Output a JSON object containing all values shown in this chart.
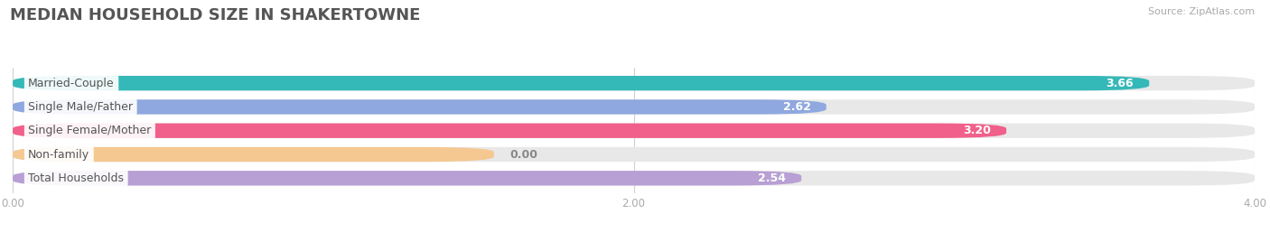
{
  "title": "MEDIAN HOUSEHOLD SIZE IN SHAKERTOWNE",
  "source": "Source: ZipAtlas.com",
  "categories": [
    "Married-Couple",
    "Single Male/Father",
    "Single Female/Mother",
    "Non-family",
    "Total Households"
  ],
  "values": [
    3.66,
    2.62,
    3.2,
    0.0,
    2.54
  ],
  "bar_colors": [
    "#35b8b8",
    "#8fa8df",
    "#f0608a",
    "#f5c892",
    "#b89fd4"
  ],
  "bar_bg_color": "#e8e8e8",
  "xlim": [
    0,
    4.0
  ],
  "xticks": [
    0.0,
    2.0,
    4.0
  ],
  "xtick_labels": [
    "0.00",
    "2.00",
    "4.00"
  ],
  "background_color": "#ffffff",
  "title_fontsize": 13,
  "label_fontsize": 9,
  "value_fontsize": 9,
  "bar_height": 0.62,
  "nonfamily_bar_width": 1.55
}
